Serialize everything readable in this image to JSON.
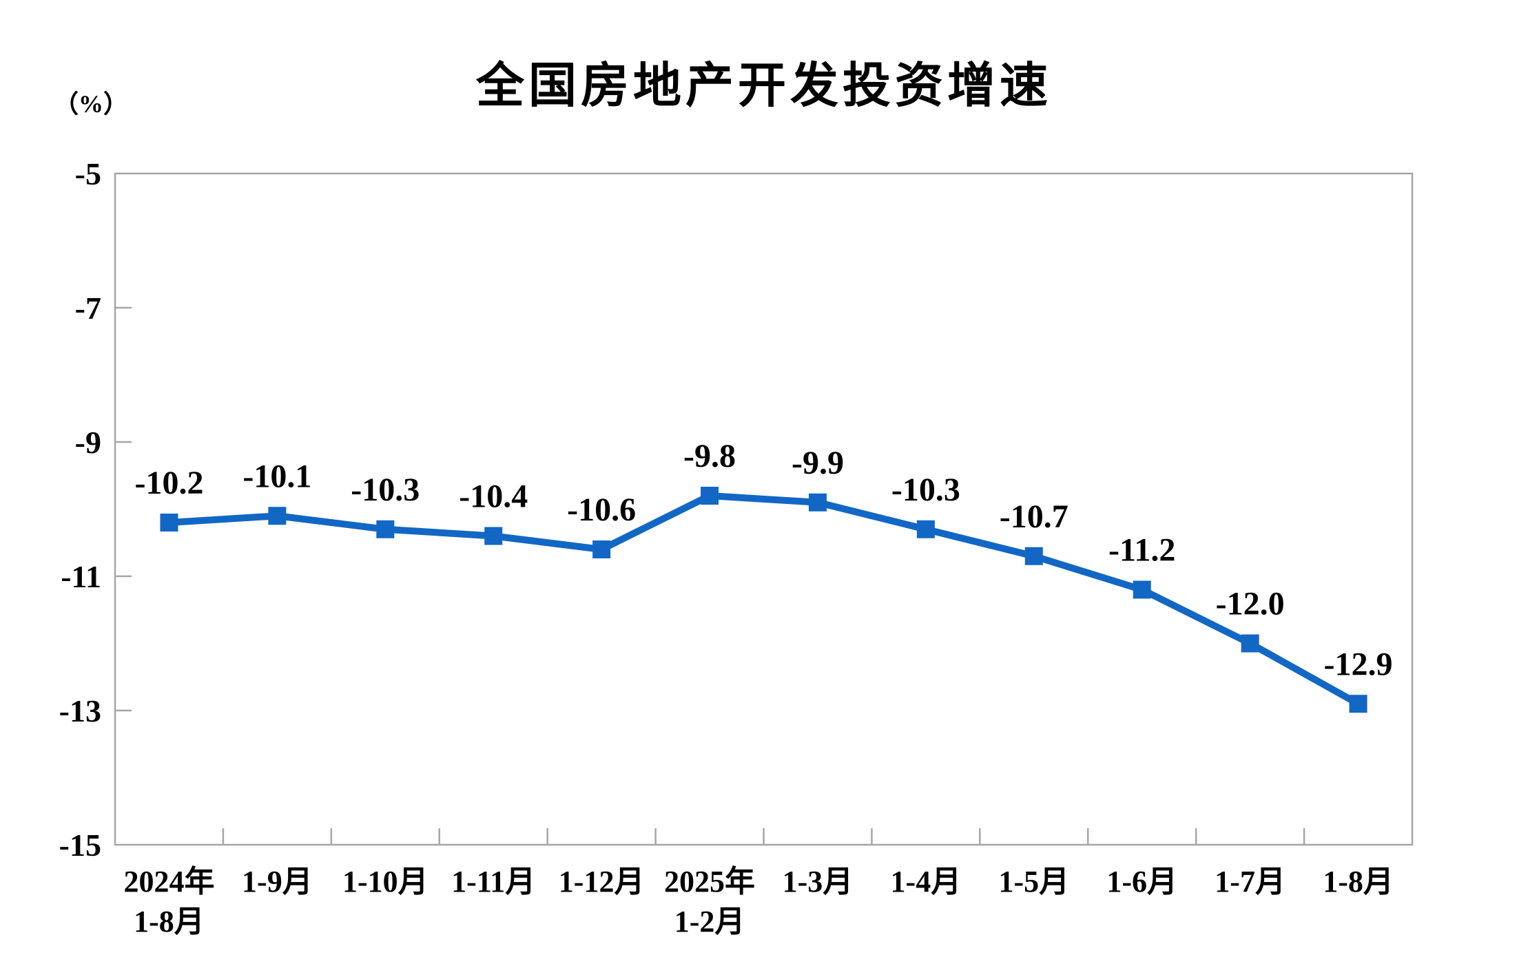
{
  "page": {
    "background_color": "#FFFFFF"
  },
  "chart_data": {
    "type": "line",
    "title": "全国房地产开发投资增速",
    "unit_label": "（%）",
    "xlabel": "",
    "ylabel": "(%)",
    "categories": [
      "2024年\n1-8月",
      "1-9月",
      "1-10月",
      "1-11月",
      "1-12月",
      "2025年\n1-2月",
      "1-3月",
      "1-4月",
      "1-5月",
      "1-6月",
      "1-7月",
      "1-8月"
    ],
    "series": [
      {
        "name": "全国房地产开发投资增速",
        "values": [
          -10.2,
          -10.1,
          -10.3,
          -10.4,
          -10.6,
          -9.8,
          -9.9,
          -10.3,
          -10.7,
          -11.2,
          -12.0,
          -12.9
        ],
        "data_labels": [
          "-10.2",
          "-10.1",
          "-10.3",
          "-10.4",
          "-10.6",
          "-9.8",
          "-9.9",
          "-10.3",
          "-10.7",
          "-11.2",
          "-12.0",
          "-12.9"
        ],
        "line_color": "#1267C5",
        "marker": "square",
        "marker_color": "#1267C5"
      }
    ],
    "y_axis": {
      "min": -15,
      "max": -5,
      "tick_interval": 2,
      "tick_labels": [
        "-5",
        "-7",
        "-9",
        "-11",
        "-13",
        "-15"
      ]
    },
    "ylim": [
      -15,
      -5
    ],
    "grid": "off",
    "legend": "none",
    "data_labels_shown": true,
    "axis_color": "#A6A6A6",
    "text_color": "#000000"
  }
}
